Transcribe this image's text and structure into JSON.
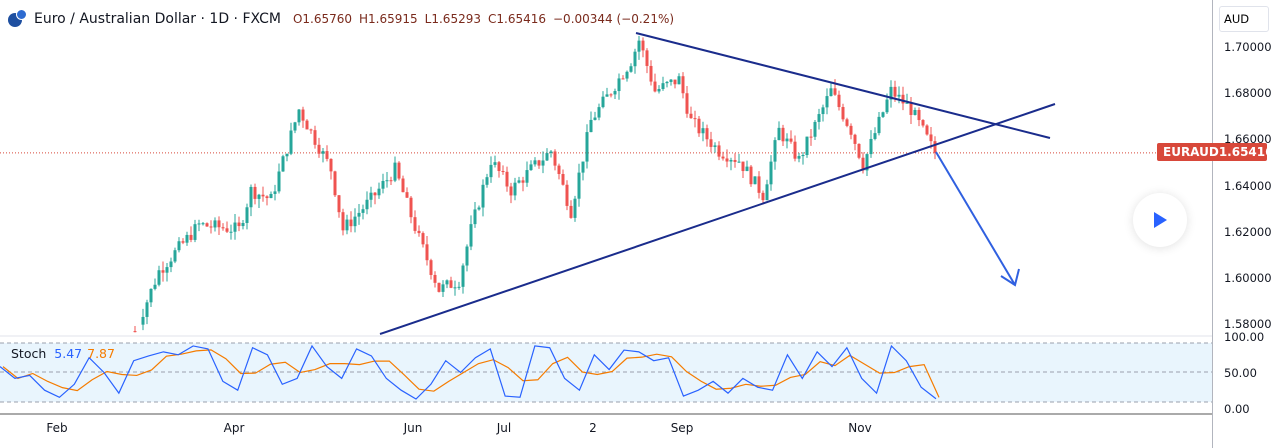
{
  "header": {
    "symbol_title": "Euro / Australian Dollar · 1D · FXCM",
    "open": "O1.65760",
    "high": "H1.65915",
    "low": "L1.65293",
    "close": "C1.65416",
    "change": "−0.00344 (−0.21%)"
  },
  "price_axis": {
    "currency": "AUD",
    "ticks": [
      "1.70000",
      "1.68000",
      "1.66000",
      "1.64000",
      "1.62000",
      "1.60000",
      "1.58000"
    ],
    "tick_values": [
      1.7,
      1.68,
      1.66,
      1.64,
      1.62,
      1.6,
      1.58
    ]
  },
  "price_tag": {
    "symbol": "EURAUD",
    "price": "1.65416",
    "value": 1.65416
  },
  "stoch": {
    "label": "Stoch",
    "k": "5.47",
    "d": "7.87",
    "ticks": [
      "100.00",
      "50.00",
      "0.00"
    ],
    "k_color": "#2962ff",
    "d_color": "#f57c00"
  },
  "x_axis": {
    "labels": [
      "Feb",
      "Apr",
      "Jun",
      "Jul",
      "2",
      "Sep",
      "Nov"
    ]
  },
  "colors": {
    "up": "#26a69a",
    "down": "#ef5350",
    "trendline": "#1a2c8c",
    "arrow": "#3060e0"
  },
  "chart_data": {
    "type": "candlestick",
    "price_path": [
      [
        0,
        1.577
      ],
      [
        6,
        1.603
      ],
      [
        16,
        1.623
      ],
      [
        26,
        1.621
      ],
      [
        29,
        1.638
      ],
      [
        34,
        1.634
      ],
      [
        41,
        1.673
      ],
      [
        49,
        1.647
      ],
      [
        52,
        1.621
      ],
      [
        59,
        1.634
      ],
      [
        65,
        1.647
      ],
      [
        71,
        1.617
      ],
      [
        76,
        1.595
      ],
      [
        81,
        1.599
      ],
      [
        84,
        1.621
      ],
      [
        89,
        1.651
      ],
      [
        94,
        1.638
      ],
      [
        99,
        1.647
      ],
      [
        104,
        1.655
      ],
      [
        109,
        1.629
      ],
      [
        114,
        1.668
      ],
      [
        119,
        1.681
      ],
      [
        124,
        1.694
      ],
      [
        126,
        1.703
      ],
      [
        130,
        1.681
      ],
      [
        136,
        1.686
      ],
      [
        139,
        1.668
      ],
      [
        146,
        1.655
      ],
      [
        151,
        1.651
      ],
      [
        157,
        1.636
      ],
      [
        161,
        1.664
      ],
      [
        166,
        1.651
      ],
      [
        174,
        1.681
      ],
      [
        179,
        1.664
      ],
      [
        182,
        1.649
      ],
      [
        189,
        1.681
      ],
      [
        194,
        1.673
      ],
      [
        200,
        1.654
      ]
    ],
    "stoch_k": [
      60,
      40,
      45,
      20,
      8,
      30,
      75,
      50,
      15,
      70,
      78,
      85,
      80,
      95,
      90,
      35,
      20,
      92,
      80,
      30,
      40,
      95,
      60,
      40,
      90,
      78,
      40,
      20,
      5,
      30,
      70,
      50,
      75,
      90,
      10,
      8,
      95,
      92,
      40,
      20,
      80,
      55,
      88,
      85,
      70,
      75,
      10,
      20,
      35,
      15,
      40,
      25,
      20,
      80,
      40,
      85,
      60,
      92,
      40,
      15,
      95,
      70,
      25,
      5.47
    ],
    "stoch_range": [
      0,
      100
    ]
  }
}
